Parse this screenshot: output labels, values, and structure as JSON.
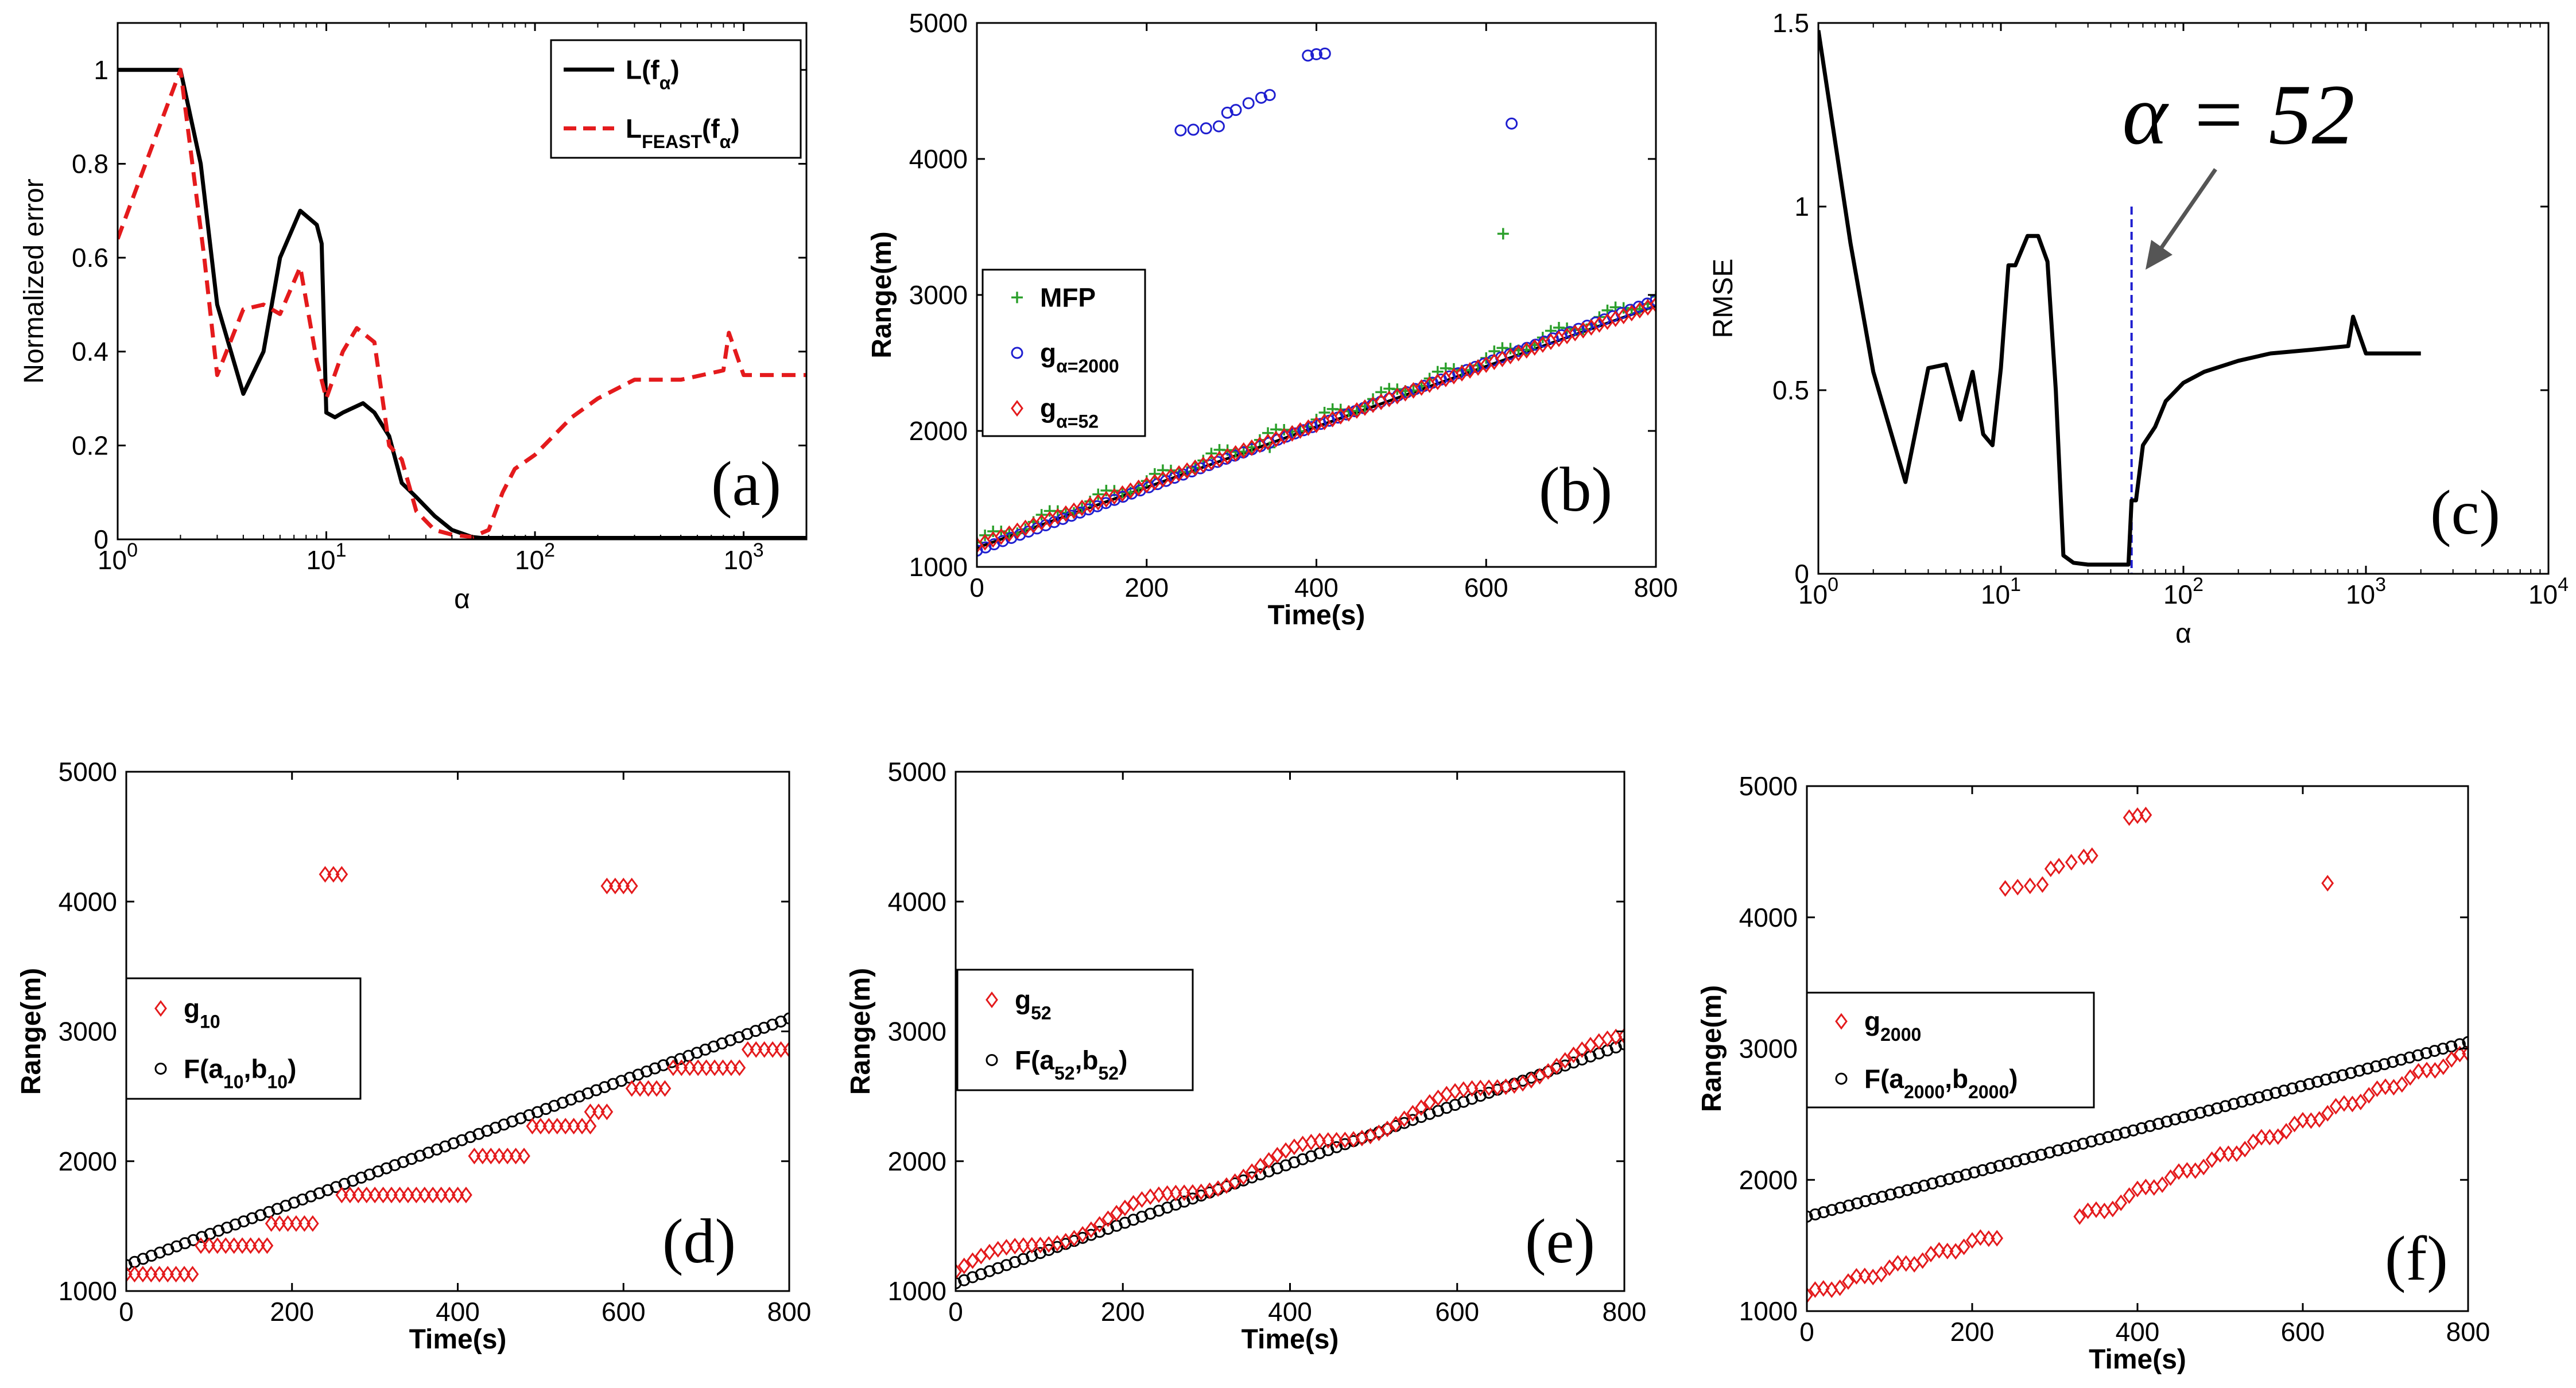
{
  "chart_data": [
    {
      "id": "a",
      "type": "line",
      "panel_label": "(a)",
      "title": "",
      "xlabel": "α",
      "ylabel": "Normalized error",
      "xscale": "log",
      "xlim": [
        1,
        2000
      ],
      "ylim": [
        0,
        1.1
      ],
      "xticks": [
        1,
        10,
        100,
        1000
      ],
      "xtick_labels": [
        "10",
        "10",
        "10",
        "10"
      ],
      "xtick_exps": [
        "0",
        "1",
        "2",
        "3"
      ],
      "yticks": [
        0,
        0.2,
        0.4,
        0.6,
        0.8,
        1
      ],
      "ytick_labels": [
        "0",
        "0.2",
        "0.4",
        "0.6",
        "0.8",
        "1"
      ],
      "legend": {
        "position": "top-right",
        "entries": [
          {
            "main": "L(f",
            "sub": "α",
            "tail": ")",
            "color": "#000000",
            "style": "solid"
          },
          {
            "main": "L",
            "sub": "FEAST",
            "mid": "(f",
            "sub2": "α",
            "tail": ")",
            "color": "#e41a1c",
            "style": "dashed"
          }
        ]
      },
      "series": [
        {
          "name": "L(fα)",
          "color": "#000000",
          "dash": "",
          "x": [
            1,
            2,
            2.5,
            3,
            4,
            5,
            6,
            7.5,
            9,
            9.5,
            10,
            11,
            12,
            15,
            17,
            20,
            23,
            27,
            33,
            40,
            50,
            55,
            80,
            200,
            1000,
            2000
          ],
          "y": [
            1,
            1,
            0.8,
            0.5,
            0.31,
            0.4,
            0.6,
            0.7,
            0.67,
            0.63,
            0.27,
            0.26,
            0.27,
            0.29,
            0.27,
            0.22,
            0.12,
            0.09,
            0.05,
            0.02,
            0.005,
            0.003,
            0.003,
            0.003,
            0.003,
            0.003
          ]
        },
        {
          "name": "LFEAST(fα)",
          "color": "#e41a1c",
          "dash": "24,14",
          "x": [
            1,
            2,
            2.6,
            3,
            4,
            5,
            6,
            7.5,
            9,
            10,
            12,
            14,
            17,
            20,
            23,
            27,
            33,
            40,
            50,
            60,
            70,
            80,
            100,
            150,
            200,
            300,
            500,
            800,
            850,
            1000,
            2000
          ],
          "y": [
            0.64,
            1,
            0.6,
            0.35,
            0.49,
            0.5,
            0.48,
            0.58,
            0.38,
            0.3,
            0.4,
            0.45,
            0.42,
            0.2,
            0.17,
            0.06,
            0.02,
            0.01,
            0.005,
            0.02,
            0.1,
            0.15,
            0.18,
            0.26,
            0.3,
            0.34,
            0.34,
            0.36,
            0.44,
            0.35,
            0.35
          ]
        }
      ]
    },
    {
      "id": "b",
      "type": "scatter",
      "panel_label": "(b)",
      "title": "",
      "xlabel": "Time(s)",
      "ylabel": "Range(m)",
      "xlim": [
        0,
        800
      ],
      "ylim": [
        1000,
        5000
      ],
      "xticks": [
        0,
        200,
        400,
        600,
        800
      ],
      "xtick_labels": [
        "0",
        "200",
        "400",
        "600",
        "800"
      ],
      "yticks": [
        1000,
        2000,
        3000,
        4000,
        5000
      ],
      "ytick_labels": [
        "1000",
        "2000",
        "3000",
        "4000",
        "5000"
      ],
      "legend": {
        "position": "middle-left",
        "entries": [
          {
            "main": "MFP",
            "color": "#2ca02c",
            "marker": "plus"
          },
          {
            "main": "g",
            "sub": "α=2000",
            "color": "#1f1fd0",
            "marker": "circle"
          },
          {
            "main": "g",
            "sub": "α=52",
            "color": "#e41a1c",
            "marker": "diamond"
          }
        ]
      },
      "fit_line": {
        "x": [
          0,
          800
        ],
        "y": [
          1140,
          2920
        ],
        "color": "#000000"
      },
      "series": [
        {
          "name": "MFP",
          "marker": "plus",
          "color": "#2ca02c",
          "n": 85,
          "x0": 0,
          "x1": 800,
          "y0": 1180,
          "y1": 2980,
          "outliers": [
            [
              620,
              3450
            ],
            [
              345,
              1880
            ]
          ]
        },
        {
          "name": "gα=2000",
          "marker": "circle",
          "color": "#1f1fd0",
          "n": 80,
          "x0": 0,
          "x1": 800,
          "y0": 1120,
          "y1": 2960,
          "outliers": [
            [
              240,
              4210
            ],
            [
              255,
              4215
            ],
            [
              270,
              4225
            ],
            [
              285,
              4240
            ],
            [
              295,
              4340
            ],
            [
              305,
              4360
            ],
            [
              320,
              4410
            ],
            [
              335,
              4450
            ],
            [
              345,
              4470
            ],
            [
              390,
              4760
            ],
            [
              400,
              4770
            ],
            [
              410,
              4775
            ],
            [
              630,
              4260
            ]
          ]
        },
        {
          "name": "gα=52",
          "marker": "diamond",
          "color": "#e41a1c",
          "n": 85,
          "x0": 0,
          "x1": 800,
          "y0": 1160,
          "y1": 2930,
          "outliers": []
        }
      ]
    },
    {
      "id": "c",
      "type": "line",
      "panel_label": "(c)",
      "title": "",
      "xlabel": "α",
      "ylabel": "RMSE",
      "xscale": "log",
      "xlim": [
        1,
        10000
      ],
      "ylim": [
        0,
        1.5
      ],
      "xticks": [
        1,
        10,
        100,
        1000,
        10000
      ],
      "xtick_labels": [
        "10",
        "10",
        "10",
        "10",
        "10"
      ],
      "xtick_exps": [
        "0",
        "1",
        "2",
        "3",
        "4"
      ],
      "yticks": [
        0,
        0.5,
        1,
        1.5
      ],
      "ytick_labels": [
        "0",
        "0.5",
        "1",
        "1.5"
      ],
      "annotation": {
        "text": "α = 52",
        "x": 52
      },
      "vline": {
        "x": 52,
        "color": "#1f1fd0"
      },
      "series": [
        {
          "name": "RMSE",
          "color": "#000000",
          "x": [
            1,
            1.5,
            2,
            3,
            4,
            5,
            6,
            7,
            8,
            9,
            10,
            11,
            12,
            14,
            16,
            18,
            20,
            22,
            25,
            30,
            40,
            50,
            52,
            55,
            60,
            70,
            80,
            100,
            130,
            200,
            300,
            500,
            800,
            850,
            1000,
            2000
          ],
          "y": [
            1.48,
            0.9,
            0.55,
            0.25,
            0.56,
            0.57,
            0.42,
            0.55,
            0.38,
            0.35,
            0.56,
            0.84,
            0.84,
            0.92,
            0.92,
            0.85,
            0.5,
            0.05,
            0.03,
            0.025,
            0.025,
            0.025,
            0.2,
            0.2,
            0.35,
            0.4,
            0.47,
            0.52,
            0.55,
            0.58,
            0.6,
            0.61,
            0.62,
            0.7,
            0.6,
            0.6
          ]
        }
      ]
    },
    {
      "id": "d",
      "type": "scatter",
      "panel_label": "(d)",
      "title": "",
      "xlabel": "Time(s)",
      "ylabel": "Range(m)",
      "xlim": [
        0,
        800
      ],
      "ylim": [
        1000,
        5000
      ],
      "xticks": [
        0,
        200,
        400,
        600,
        800
      ],
      "xtick_labels": [
        "0",
        "200",
        "400",
        "600",
        "800"
      ],
      "yticks": [
        1000,
        2000,
        3000,
        4000,
        5000
      ],
      "ytick_labels": [
        "1000",
        "2000",
        "3000",
        "4000",
        "5000"
      ],
      "legend": {
        "position": "middle-left",
        "entries": [
          {
            "main": "g",
            "sub": "10",
            "color": "#e41a1c",
            "marker": "diamond"
          },
          {
            "main": "F(a",
            "sub": "10",
            "mid": ",b",
            "sub2": "10",
            "tail": ")",
            "color": "#000000",
            "marker": "circle"
          }
        ]
      },
      "series": [
        {
          "name": "F(a10,b10)",
          "marker": "circle",
          "color": "#000000",
          "n": 80,
          "x0": 0,
          "x1": 800,
          "y0": 1200,
          "y1": 3100
        },
        {
          "name": "g10",
          "marker": "diamond",
          "color": "#e41a1c",
          "steps": [
            [
              0,
              80,
              1130
            ],
            [
              90,
              170,
              1350
            ],
            [
              175,
              230,
              1520
            ],
            [
              260,
              410,
              1740
            ],
            [
              420,
              480,
              2040
            ],
            [
              490,
              560,
              2270
            ],
            [
              560,
              580,
              2380
            ],
            [
              610,
              650,
              2560
            ],
            [
              660,
              740,
              2720
            ],
            [
              750,
              800,
              2860
            ]
          ],
          "outliers": [
            [
              240,
              4210
            ],
            [
              250,
              4210
            ],
            [
              260,
              4210
            ],
            [
              580,
              4120
            ],
            [
              590,
              4120
            ],
            [
              600,
              4120
            ],
            [
              610,
              4120
            ]
          ]
        }
      ]
    },
    {
      "id": "e",
      "type": "scatter",
      "panel_label": "(e)",
      "title": "",
      "xlabel": "Time(s)",
      "ylabel": "Range(m)",
      "xlim": [
        0,
        800
      ],
      "ylim": [
        1000,
        5000
      ],
      "xticks": [
        0,
        200,
        400,
        600,
        800
      ],
      "xtick_labels": [
        "0",
        "200",
        "400",
        "600",
        "800"
      ],
      "yticks": [
        1000,
        2000,
        3000,
        4000,
        5000
      ],
      "ytick_labels": [
        "1000",
        "2000",
        "3000",
        "4000",
        "5000"
      ],
      "legend": {
        "position": "middle-left",
        "entries": [
          {
            "main": "g",
            "sub": "52",
            "color": "#e41a1c",
            "marker": "diamond"
          },
          {
            "main": "F(a",
            "sub": "52",
            "mid": ",b",
            "sub2": "52",
            "tail": ")",
            "color": "#000000",
            "marker": "circle"
          }
        ]
      },
      "series": [
        {
          "name": "F(a52,b52)",
          "marker": "circle",
          "color": "#000000",
          "n": 80,
          "x0": 0,
          "x1": 800,
          "y0": 1060,
          "y1": 2900
        },
        {
          "name": "g52",
          "marker": "diamond",
          "color": "#e41a1c",
          "n": 80,
          "x0": 0,
          "x1": 800,
          "y0": 1150,
          "y1": 2930,
          "wiggle": 60
        }
      ]
    },
    {
      "id": "f",
      "type": "scatter",
      "panel_label": "(f)",
      "title": "",
      "xlabel": "Time(s)",
      "ylabel": "Range(m)",
      "xlim": [
        0,
        800
      ],
      "ylim": [
        1000,
        5000
      ],
      "xticks": [
        0,
        200,
        400,
        600,
        800
      ],
      "xtick_labels": [
        "0",
        "200",
        "400",
        "600",
        "800"
      ],
      "yticks": [
        1000,
        2000,
        3000,
        4000,
        5000
      ],
      "ytick_labels": [
        "1000",
        "2000",
        "3000",
        "4000",
        "5000"
      ],
      "legend": {
        "position": "middle-left",
        "entries": [
          {
            "main": "g",
            "sub": "2000",
            "color": "#e41a1c",
            "marker": "diamond"
          },
          {
            "main": "F(a",
            "sub": "2000",
            "mid": ",b",
            "sub2": "2000",
            "tail": ")",
            "color": "#000000",
            "marker": "circle"
          }
        ]
      },
      "series": [
        {
          "name": "F(a2000,b2000)",
          "marker": "circle",
          "color": "#000000",
          "n": 80,
          "x0": 0,
          "x1": 800,
          "y0": 1720,
          "y1": 3050
        },
        {
          "name": "g2000",
          "marker": "diamond",
          "color": "#e41a1c",
          "segments": [
            [
              0,
              230,
              1120,
              1580
            ],
            [
              330,
              380,
              1720,
              1820
            ],
            [
              390,
              800,
              1880,
              2960
            ]
          ],
          "outliers": [
            [
              240,
              4220
            ],
            [
              255,
              4230
            ],
            [
              270,
              4240
            ],
            [
              285,
              4250
            ],
            [
              295,
              4370
            ],
            [
              305,
              4390
            ],
            [
              320,
              4420
            ],
            [
              335,
              4460
            ],
            [
              345,
              4470
            ],
            [
              390,
              4760
            ],
            [
              400,
              4775
            ],
            [
              410,
              4780
            ],
            [
              630,
              4260
            ]
          ]
        }
      ]
    }
  ]
}
